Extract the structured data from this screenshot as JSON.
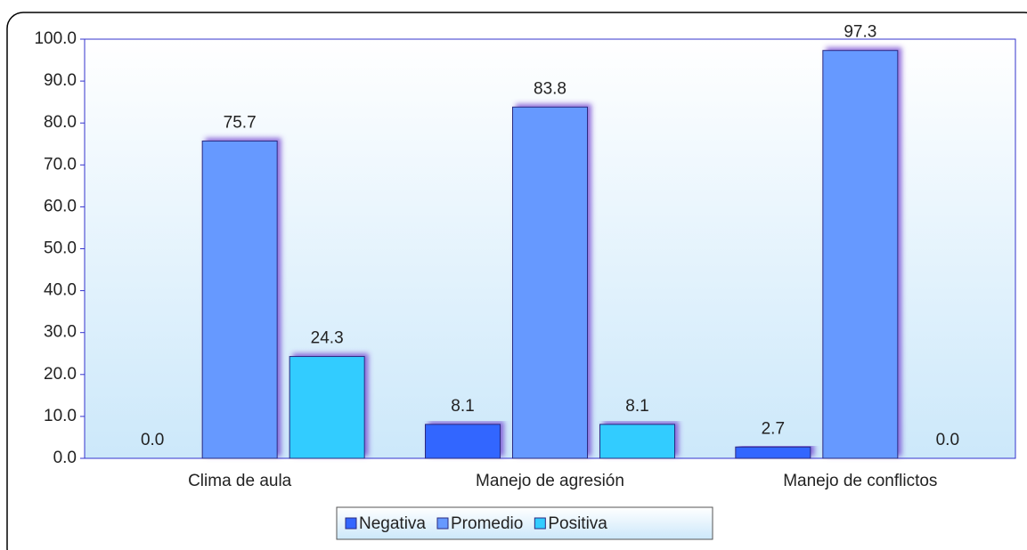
{
  "chart_data": {
    "type": "bar",
    "categories": [
      "Clima de aula",
      "Manejo de agresión",
      "Manejo de conflictos"
    ],
    "series": [
      {
        "name": "Negativa",
        "color": "#3366ff",
        "values": [
          0,
          8.1,
          2.7
        ],
        "value_labels": [
          "0.0",
          "8.1",
          "2.7"
        ]
      },
      {
        "name": "Promedio",
        "color": "#6699ff",
        "values": [
          75.7,
          83.8,
          97.3
        ],
        "value_labels": [
          "75.7",
          "83.8",
          "97.3"
        ]
      },
      {
        "name": "Positiva",
        "color": "#33ccff",
        "values": [
          24.3,
          8.1,
          0
        ],
        "value_labels": [
          "24.3",
          "8.1",
          "0.0"
        ]
      }
    ],
    "ylim": [
      0,
      100
    ],
    "yticks": [
      {
        "value": 0,
        "label": "0.0"
      },
      {
        "value": 10,
        "label": "10.0"
      },
      {
        "value": 20,
        "label": "20.0"
      },
      {
        "value": 30,
        "label": "30.0"
      },
      {
        "value": 40,
        "label": "40.0"
      },
      {
        "value": 50,
        "label": "50.0"
      },
      {
        "value": 60,
        "label": "60.0"
      },
      {
        "value": 70,
        "label": "70.0"
      },
      {
        "value": 80,
        "label": "80.0"
      },
      {
        "value": 90,
        "label": "90.0"
      },
      {
        "value": 100,
        "label": "100.0"
      }
    ],
    "legend": "bottom"
  }
}
